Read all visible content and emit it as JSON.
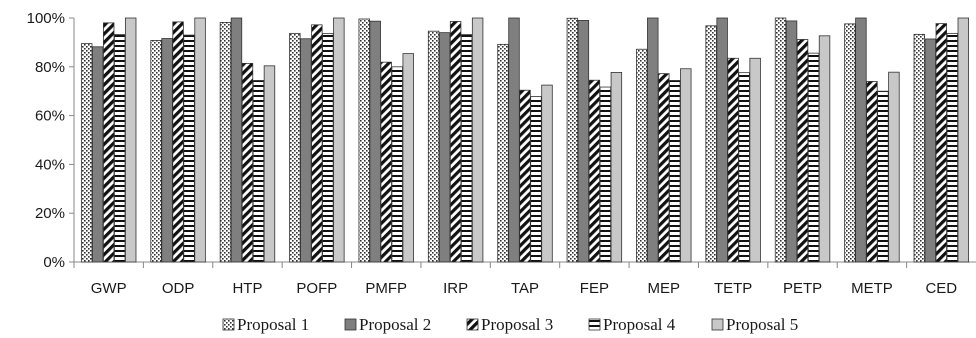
{
  "chart_data": {
    "type": "bar",
    "title": "",
    "xlabel": "",
    "ylabel": "",
    "ylim": [
      0,
      100
    ],
    "y_ticks": [
      "0%",
      "20%",
      "40%",
      "60%",
      "80%",
      "100%"
    ],
    "grid": false,
    "legend_position": "bottom",
    "categories": [
      "GWP",
      "ODP",
      "HTP",
      "POFP",
      "PMFP",
      "IRP",
      "TAP",
      "FEP",
      "MEP",
      "TETP",
      "PETP",
      "METP",
      "CED"
    ],
    "series": [
      {
        "name": "Proposal 1",
        "pattern": "dots",
        "values": [
          89.5,
          90.8,
          98.2,
          93.7,
          99.6,
          94.6,
          89.2,
          99.9,
          87.2,
          96.8,
          100,
          97.6,
          93.3
        ]
      },
      {
        "name": "Proposal 2",
        "pattern": "solid-dark",
        "values": [
          88.2,
          91.6,
          100,
          91.5,
          98.7,
          94.0,
          100,
          99.0,
          100,
          100,
          98.8,
          100,
          91.4
        ]
      },
      {
        "name": "Proposal 3",
        "pattern": "diagonal",
        "values": [
          98.0,
          98.4,
          81.4,
          97.2,
          81.9,
          98.6,
          70.4,
          74.5,
          77.2,
          83.5,
          91.2,
          74.0,
          97.7
        ]
      },
      {
        "name": "Proposal 4",
        "pattern": "horizontal",
        "values": [
          93.2,
          93.0,
          74.4,
          93.6,
          80.0,
          93.2,
          67.8,
          71.7,
          74.4,
          77.6,
          85.6,
          70.0,
          93.7
        ]
      },
      {
        "name": "Proposal 5",
        "pattern": "solid-light",
        "values": [
          100,
          100,
          80.4,
          100,
          85.4,
          100,
          72.5,
          77.7,
          79.2,
          83.5,
          92.7,
          77.8,
          100
        ]
      }
    ],
    "colors": {
      "dark": "#7f7f7f",
      "light": "#c8c8c8",
      "axis": "#888888"
    }
  }
}
